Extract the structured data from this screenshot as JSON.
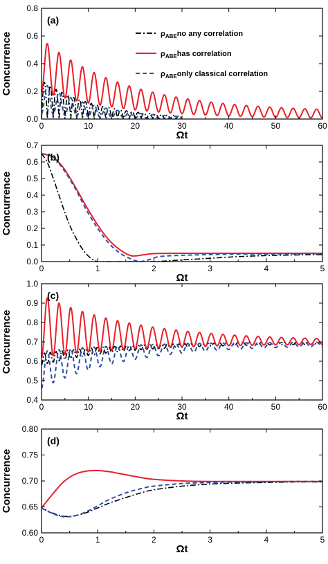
{
  "legend": {
    "entries": [
      {
        "symbol": "ρ",
        "subscript": "ABE",
        "text": "no any correlation",
        "color": "#000000",
        "dash": "8,3,2,3"
      },
      {
        "symbol": "ρ",
        "subscript": "ABE",
        "text": "has correlation",
        "color": "#e8202a",
        "dash": ""
      },
      {
        "symbol": "ρ",
        "subscript": "ABE",
        "text": "only classical correlation",
        "color": "#2c4fa3",
        "dash": "6,4"
      }
    ]
  },
  "chart_data": [
    {
      "type": "line",
      "panel_label": "(a)",
      "xlabel": "Ωt",
      "ylabel": "Concurrence",
      "xlim": [
        0,
        60
      ],
      "ylim": [
        0,
        0.8
      ],
      "xticks": [
        "0",
        "10",
        "20",
        "30",
        "40",
        "50",
        "60"
      ],
      "yticks": [
        "0.0",
        "0.2",
        "0.4",
        "0.6",
        "0.8"
      ],
      "series": [
        {
          "name": "ρABE no any correlation",
          "model": {
            "kind": "abs_osc",
            "period": 1.25,
            "amp": 0.28,
            "decay": 0.085,
            "floor": 0.0
          },
          "x_end": 30
        },
        {
          "name": "ρABE has correlation",
          "model": {
            "kind": "osc_env",
            "period": 2.5,
            "upper_start": 0.58,
            "upper_end": 0.05,
            "lower_start": 0.2,
            "lower_end": 0.0,
            "decay": 0.055
          }
        },
        {
          "name": "ρABE only classical correlation",
          "model": {
            "kind": "osc_env",
            "period": 2.5,
            "upper_start": 0.27,
            "upper_end": 0.0,
            "lower_start": 0.04,
            "lower_end": 0.0,
            "decay": 0.09
          },
          "x_end": 30
        }
      ]
    },
    {
      "type": "line",
      "panel_label": "(b)",
      "xlabel": "Ωt",
      "ylabel": "Concurrence",
      "xlim": [
        0,
        5
      ],
      "ylim": [
        0,
        0.7
      ],
      "xticks": [
        "0",
        "1",
        "2",
        "3",
        "4",
        "5"
      ],
      "yticks": [
        "0.0",
        "0.1",
        "0.2",
        "0.3",
        "0.4",
        "0.5",
        "0.6",
        "0.7"
      ],
      "series": [
        {
          "name": "ρABE no any correlation",
          "x": [
            0,
            0.1,
            0.2,
            0.3,
            0.4,
            0.5,
            0.6,
            0.7,
            0.8,
            0.9,
            1.0,
            1.1,
            1.2,
            1.5,
            2.0,
            2.5,
            3.0,
            3.5,
            4.0,
            4.5,
            5.0
          ],
          "y": [
            0.65,
            0.6,
            0.51,
            0.41,
            0.31,
            0.22,
            0.15,
            0.09,
            0.045,
            0.015,
            0.0,
            0.0,
            0.0,
            0.0,
            0.0,
            0.01,
            0.02,
            0.03,
            0.036,
            0.04,
            0.042
          ]
        },
        {
          "name": "ρABE has correlation",
          "x": [
            0,
            0.2,
            0.4,
            0.6,
            0.8,
            1.0,
            1.2,
            1.4,
            1.6,
            1.8,
            2.0,
            2.5,
            3.0,
            3.5,
            4.0,
            4.5,
            5.0
          ],
          "y": [
            0.65,
            0.63,
            0.56,
            0.45,
            0.33,
            0.22,
            0.13,
            0.07,
            0.035,
            0.04,
            0.048,
            0.05,
            0.05,
            0.05,
            0.05,
            0.05,
            0.05
          ]
        },
        {
          "name": "ρABE only classical correlation",
          "x": [
            0,
            0.2,
            0.4,
            0.6,
            0.8,
            1.0,
            1.2,
            1.4,
            1.6,
            1.75,
            1.9,
            2.1,
            2.5,
            3.0,
            3.5,
            4.0,
            4.5,
            5.0
          ],
          "y": [
            0.65,
            0.63,
            0.55,
            0.44,
            0.31,
            0.2,
            0.11,
            0.05,
            0.015,
            0.0,
            0.01,
            0.03,
            0.038,
            0.042,
            0.045,
            0.046,
            0.047,
            0.048
          ]
        }
      ]
    },
    {
      "type": "line",
      "panel_label": "(c)",
      "xlabel": "Ωt",
      "ylabel": "Concurrence",
      "xlim": [
        0,
        60
      ],
      "ylim": [
        0.4,
        1.0
      ],
      "xticks": [
        "0",
        "10",
        "20",
        "30",
        "40",
        "50",
        "60"
      ],
      "yticks": [
        "0.4",
        "0.5",
        "0.6",
        "0.7",
        "0.8",
        "0.9",
        "1.0"
      ],
      "series": [
        {
          "name": "ρABE no any correlation",
          "model": {
            "kind": "osc_env",
            "period": 1.25,
            "upper_start": 0.64,
            "upper_end": 0.7,
            "lower_start": 0.58,
            "lower_end": 0.69,
            "decay": 0.06
          }
        },
        {
          "name": "ρABE has correlation",
          "model": {
            "kind": "osc_env",
            "period": 2.5,
            "upper_start": 0.94,
            "upper_end": 0.705,
            "lower_start": 0.62,
            "lower_end": 0.69,
            "decay": 0.05
          }
        },
        {
          "name": "ρABE only classical correlation",
          "model": {
            "kind": "osc_env",
            "period": 2.5,
            "upper_start": 0.65,
            "upper_end": 0.7,
            "lower_start": 0.46,
            "lower_end": 0.685,
            "decay": 0.055
          }
        }
      ]
    },
    {
      "type": "line",
      "panel_label": "(d)",
      "xlabel": "Ωt",
      "ylabel": "Concurrence",
      "xlim": [
        0,
        5
      ],
      "ylim": [
        0.6,
        0.8
      ],
      "xticks": [
        "0",
        "1",
        "2",
        "3",
        "4",
        "5"
      ],
      "yticks": [
        "0.60",
        "0.65",
        "0.70",
        "0.75",
        "0.80"
      ],
      "series": [
        {
          "name": "ρABE no any correlation",
          "x": [
            0,
            0.2,
            0.4,
            0.6,
            0.8,
            1.0,
            1.2,
            1.5,
            1.8,
            2.0,
            2.5,
            3.0,
            3.5,
            4.0,
            4.5,
            5.0
          ],
          "y": [
            0.648,
            0.638,
            0.632,
            0.633,
            0.639,
            0.648,
            0.657,
            0.668,
            0.678,
            0.683,
            0.69,
            0.694,
            0.696,
            0.697,
            0.698,
            0.698
          ]
        },
        {
          "name": "ρABE has correlation",
          "x": [
            0,
            0.2,
            0.4,
            0.6,
            0.8,
            1.0,
            1.2,
            1.4,
            1.6,
            1.8,
            2.0,
            2.5,
            3.0,
            3.5,
            4.0,
            4.5,
            5.0
          ],
          "y": [
            0.648,
            0.675,
            0.699,
            0.713,
            0.719,
            0.72,
            0.718,
            0.714,
            0.71,
            0.706,
            0.703,
            0.7,
            0.699,
            0.699,
            0.699,
            0.699,
            0.699
          ]
        },
        {
          "name": "ρABE only classical correlation",
          "x": [
            0,
            0.2,
            0.4,
            0.6,
            0.8,
            1.0,
            1.2,
            1.5,
            1.8,
            2.0,
            2.5,
            3.0,
            3.5,
            4.0,
            4.5,
            5.0
          ],
          "y": [
            0.648,
            0.637,
            0.631,
            0.633,
            0.641,
            0.652,
            0.664,
            0.677,
            0.686,
            0.69,
            0.695,
            0.697,
            0.698,
            0.698,
            0.699,
            0.699
          ]
        }
      ]
    }
  ]
}
